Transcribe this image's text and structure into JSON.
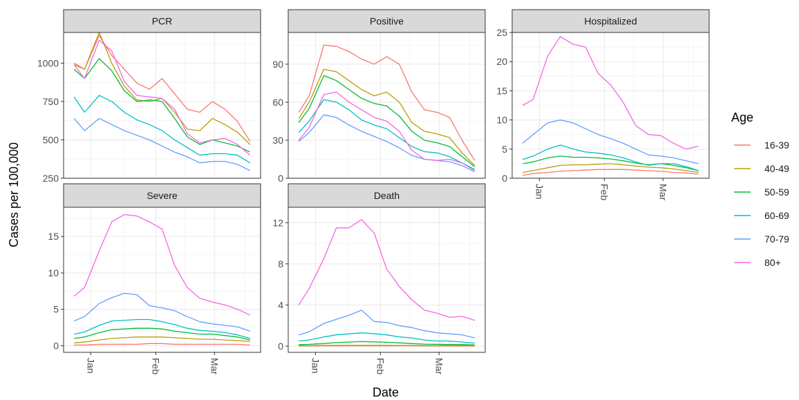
{
  "chart_data": {
    "type": "line",
    "x_axis": {
      "label": "Date",
      "tick_labels": [
        "Jan",
        "Feb",
        "Mar"
      ]
    },
    "y_axis": {
      "label": "Cases per 100,000"
    },
    "legend": {
      "title": "Age",
      "placement": "right",
      "entries": [
        {
          "name": "16-39",
          "color": "#F8766D"
        },
        {
          "name": "40-49",
          "color": "#B79F00"
        },
        {
          "name": "50-59",
          "color": "#00BA38"
        },
        {
          "name": "60-69",
          "color": "#00BFC4"
        },
        {
          "name": "70-79",
          "color": "#619CFF"
        },
        {
          "name": "80+",
          "color": "#F564E3"
        }
      ]
    },
    "grid": true,
    "x_days": [
      -8,
      -3,
      4,
      10,
      16,
      22,
      28,
      34,
      40,
      46,
      52,
      58,
      64,
      70,
      76
    ],
    "panels": [
      {
        "title": "PCR",
        "ylim": [
          250,
          1200
        ],
        "yticks": [
          250,
          500,
          750,
          1000
        ],
        "series": [
          {
            "name": "16-39",
            "values": [
              1000,
              960,
              1180,
              1050,
              960,
              870,
              830,
              900,
              800,
              700,
              680,
              750,
              700,
              620,
              490
            ]
          },
          {
            "name": "40-49",
            "values": [
              990,
              960,
              1200,
              1000,
              850,
              760,
              750,
              770,
              680,
              570,
              560,
              640,
              600,
              550,
              470
            ]
          },
          {
            "name": "50-59",
            "values": [
              960,
              900,
              1030,
              950,
              820,
              750,
              760,
              750,
              640,
              520,
              470,
              500,
              480,
              460,
              420
            ]
          },
          {
            "name": "60-69",
            "values": [
              780,
              680,
              790,
              750,
              680,
              630,
              600,
              560,
              500,
              450,
              400,
              410,
              410,
              400,
              350
            ]
          },
          {
            "name": "70-79",
            "values": [
              640,
              560,
              640,
              600,
              560,
              530,
              500,
              460,
              420,
              390,
              350,
              360,
              360,
              340,
              300
            ]
          },
          {
            "name": "80+",
            "values": [
              990,
              900,
              1150,
              1080,
              880,
              790,
              780,
              770,
              700,
              540,
              480,
              500,
              510,
              470,
              400
            ]
          }
        ]
      },
      {
        "title": "Positive",
        "ylim": [
          0,
          115
        ],
        "yticks": [
          0,
          30,
          60,
          90
        ],
        "series": [
          {
            "name": "16-39",
            "values": [
              52,
              65,
              105,
              104,
              100,
              94,
              90,
              96,
              90,
              68,
              54,
              52,
              48,
              30,
              14
            ]
          },
          {
            "name": "40-49",
            "values": [
              47,
              60,
              86,
              84,
              77,
              70,
              65,
              68,
              60,
              44,
              37,
              35,
              32,
              20,
              10
            ]
          },
          {
            "name": "50-59",
            "values": [
              44,
              55,
              81,
              77,
              70,
              63,
              59,
              57,
              49,
              37,
              30,
              28,
              25,
              17,
              9
            ]
          },
          {
            "name": "60-69",
            "values": [
              36,
              45,
              62,
              60,
              54,
              46,
              42,
              39,
              32,
              25,
              21,
              20,
              17,
              12,
              7
            ]
          },
          {
            "name": "70-79",
            "values": [
              29,
              36,
              50,
              48,
              42,
              37,
              33,
              29,
              24,
              18,
              15,
              14,
              13,
              10,
              5
            ]
          },
          {
            "name": "80+",
            "values": [
              30,
              40,
              66,
              68,
              60,
              54,
              48,
              45,
              37,
              22,
              15,
              14,
              15,
              12,
              6
            ]
          }
        ]
      },
      {
        "title": "Hospitalized",
        "ylim": [
          0,
          25
        ],
        "yticks": [
          0,
          5,
          10,
          15,
          20,
          25
        ],
        "series": [
          {
            "name": "16-39",
            "values": [
              0.5,
              0.8,
              1.0,
              1.2,
              1.3,
              1.4,
              1.5,
              1.5,
              1.5,
              1.4,
              1.3,
              1.2,
              1.0,
              0.9,
              0.7
            ]
          },
          {
            "name": "40-49",
            "values": [
              1.0,
              1.3,
              1.8,
              2.2,
              2.3,
              2.3,
              2.4,
              2.5,
              2.3,
              2.1,
              1.9,
              1.8,
              1.6,
              1.3,
              1.0
            ]
          },
          {
            "name": "50-59",
            "values": [
              2.5,
              2.8,
              3.5,
              3.8,
              3.6,
              3.6,
              3.5,
              3.3,
              3.0,
              2.6,
              2.3,
              2.5,
              2.2,
              1.8,
              1.3
            ]
          },
          {
            "name": "60-69",
            "values": [
              3.2,
              3.8,
              5.0,
              5.7,
              5.0,
              4.5,
              4.3,
              4.0,
              3.5,
              2.8,
              2.2,
              2.5,
              2.5,
              2.0,
              1.3
            ]
          },
          {
            "name": "70-79",
            "values": [
              6.0,
              7.5,
              9.5,
              10.0,
              9.5,
              8.5,
              7.5,
              6.8,
              6.0,
              5.0,
              4.0,
              3.8,
              3.5,
              3.0,
              2.5
            ]
          },
          {
            "name": "80+",
            "values": [
              12.5,
              13.5,
              21.0,
              24.3,
              23.0,
              22.5,
              18.0,
              16.0,
              13.0,
              9.0,
              7.5,
              7.3,
              6.0,
              5.0,
              5.5
            ]
          }
        ]
      },
      {
        "title": "Severe",
        "ylim": [
          -0.9,
          19
        ],
        "yticks": [
          0,
          5,
          10,
          15
        ],
        "series": [
          {
            "name": "16-39",
            "values": [
              0.1,
              0.1,
              0.2,
              0.2,
              0.2,
              0.2,
              0.3,
              0.3,
              0.2,
              0.2,
              0.2,
              0.2,
              0.2,
              0.2,
              0.1
            ]
          },
          {
            "name": "40-49",
            "values": [
              0.4,
              0.5,
              0.8,
              1.0,
              1.1,
              1.2,
              1.2,
              1.2,
              1.1,
              1.0,
              0.9,
              0.9,
              0.8,
              0.7,
              0.6
            ]
          },
          {
            "name": "50-59",
            "values": [
              1.0,
              1.2,
              1.8,
              2.2,
              2.3,
              2.4,
              2.4,
              2.3,
              2.0,
              1.8,
              1.6,
              1.6,
              1.4,
              1.2,
              0.8
            ]
          },
          {
            "name": "60-69",
            "values": [
              1.6,
              1.9,
              2.8,
              3.4,
              3.5,
              3.6,
              3.6,
              3.3,
              2.9,
              2.4,
              2.1,
              2.0,
              1.8,
              1.5,
              1.0
            ]
          },
          {
            "name": "70-79",
            "values": [
              3.4,
              4.0,
              5.8,
              6.6,
              7.2,
              7.0,
              5.5,
              5.2,
              4.8,
              4.0,
              3.3,
              3.0,
              2.8,
              2.6,
              2.0
            ]
          },
          {
            "name": "80+",
            "values": [
              6.8,
              8.0,
              13.0,
              17.0,
              18.0,
              17.8,
              17.0,
              16.0,
              11.0,
              8.0,
              6.5,
              6.0,
              5.6,
              5.0,
              4.2
            ]
          }
        ]
      },
      {
        "title": "Death",
        "ylim": [
          -0.6,
          13.5
        ],
        "yticks": [
          0,
          4,
          8,
          12
        ],
        "series": [
          {
            "name": "16-39",
            "values": [
              0.02,
              0.02,
              0.03,
              0.03,
              0.03,
              0.03,
              0.03,
              0.03,
              0.03,
              0.03,
              0.02,
              0.02,
              0.02,
              0.02,
              0.02
            ]
          },
          {
            "name": "40-49",
            "values": [
              0.05,
              0.05,
              0.07,
              0.08,
              0.08,
              0.08,
              0.08,
              0.08,
              0.07,
              0.07,
              0.06,
              0.06,
              0.06,
              0.05,
              0.05
            ]
          },
          {
            "name": "50-59",
            "values": [
              0.15,
              0.18,
              0.25,
              0.35,
              0.4,
              0.45,
              0.42,
              0.38,
              0.32,
              0.25,
              0.2,
              0.18,
              0.16,
              0.15,
              0.12
            ]
          },
          {
            "name": "60-69",
            "values": [
              0.5,
              0.6,
              0.9,
              1.1,
              1.2,
              1.3,
              1.2,
              1.1,
              0.9,
              0.8,
              0.6,
              0.5,
              0.5,
              0.4,
              0.3
            ]
          },
          {
            "name": "70-79",
            "values": [
              1.1,
              1.4,
              2.2,
              2.6,
              3.0,
              3.5,
              2.4,
              2.3,
              2.0,
              1.8,
              1.5,
              1.3,
              1.2,
              1.1,
              0.8
            ]
          },
          {
            "name": "80+",
            "values": [
              4.0,
              5.6,
              8.5,
              11.5,
              11.5,
              12.3,
              11.0,
              7.5,
              5.8,
              4.5,
              3.5,
              3.2,
              2.8,
              2.9,
              2.5
            ]
          }
        ]
      }
    ]
  }
}
